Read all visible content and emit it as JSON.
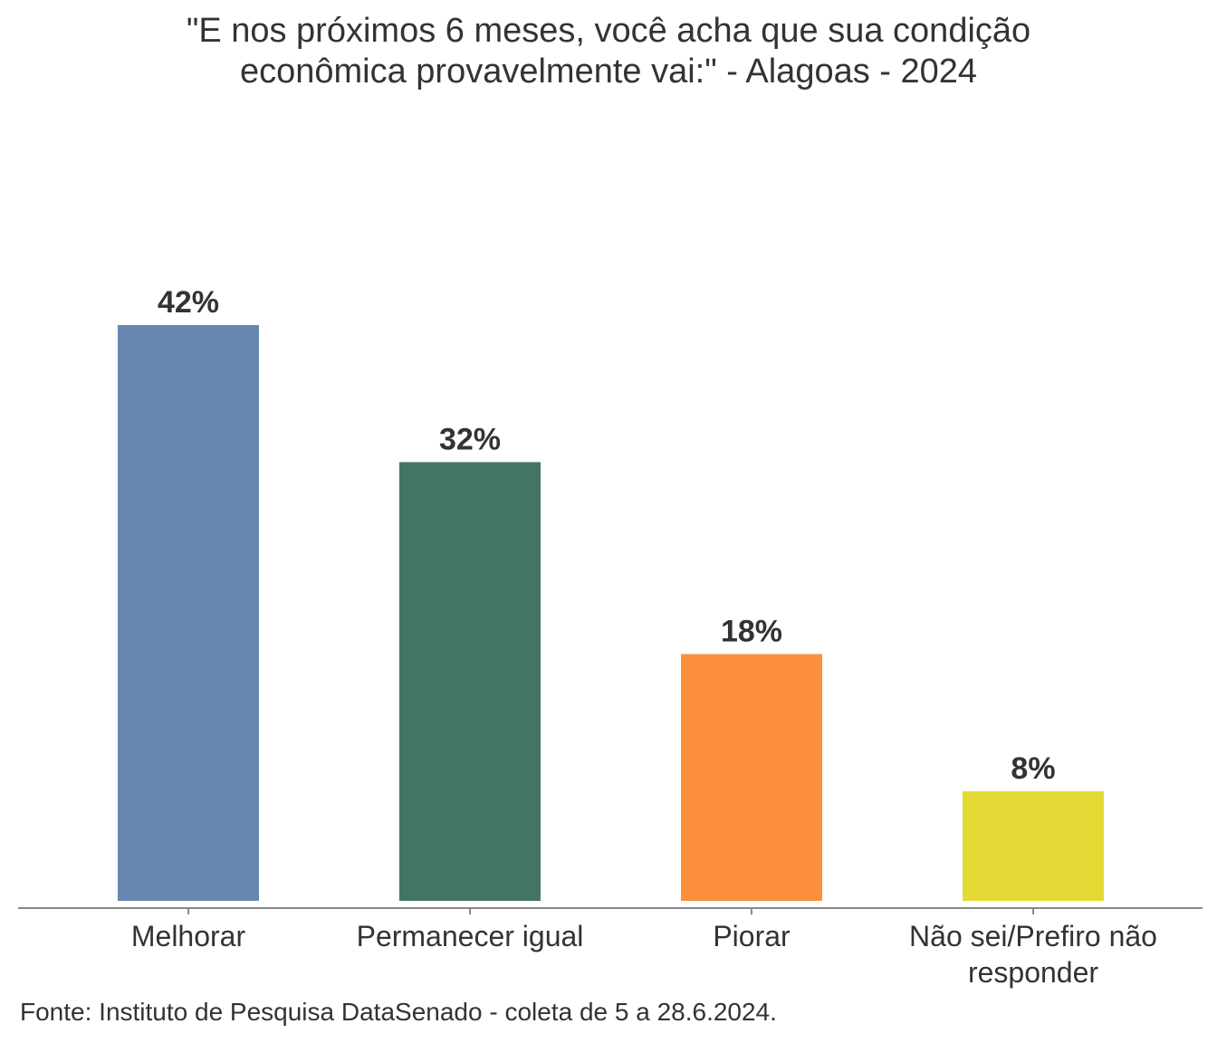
{
  "chart_data": {
    "type": "bar",
    "title_lines": [
      "\"E nos próximos 6 meses, você acha que sua condição",
      "econômica provavelmente vai:\" - Alagoas - 2024"
    ],
    "categories": [
      "Melhorar",
      "Permanecer igual",
      "Piorar",
      "Não sei/Prefiro não responder"
    ],
    "category_lines": [
      [
        "Melhorar"
      ],
      [
        "Permanecer igual"
      ],
      [
        "Piorar"
      ],
      [
        "Não sei/Prefiro não",
        "responder"
      ]
    ],
    "values": [
      42,
      32,
      18,
      8
    ],
    "data_labels": [
      "42%",
      "32%",
      "18%",
      "8%"
    ],
    "colors": [
      "#6688b0",
      "#447563",
      "#fb8f3b",
      "#e5d935"
    ],
    "xlabel": "",
    "ylabel": "",
    "ylim": [
      0,
      42
    ],
    "grid": false,
    "legend": "none"
  },
  "footer": "Fonte: Instituto de Pesquisa DataSenado - coleta de 5 a 28.6.2024."
}
